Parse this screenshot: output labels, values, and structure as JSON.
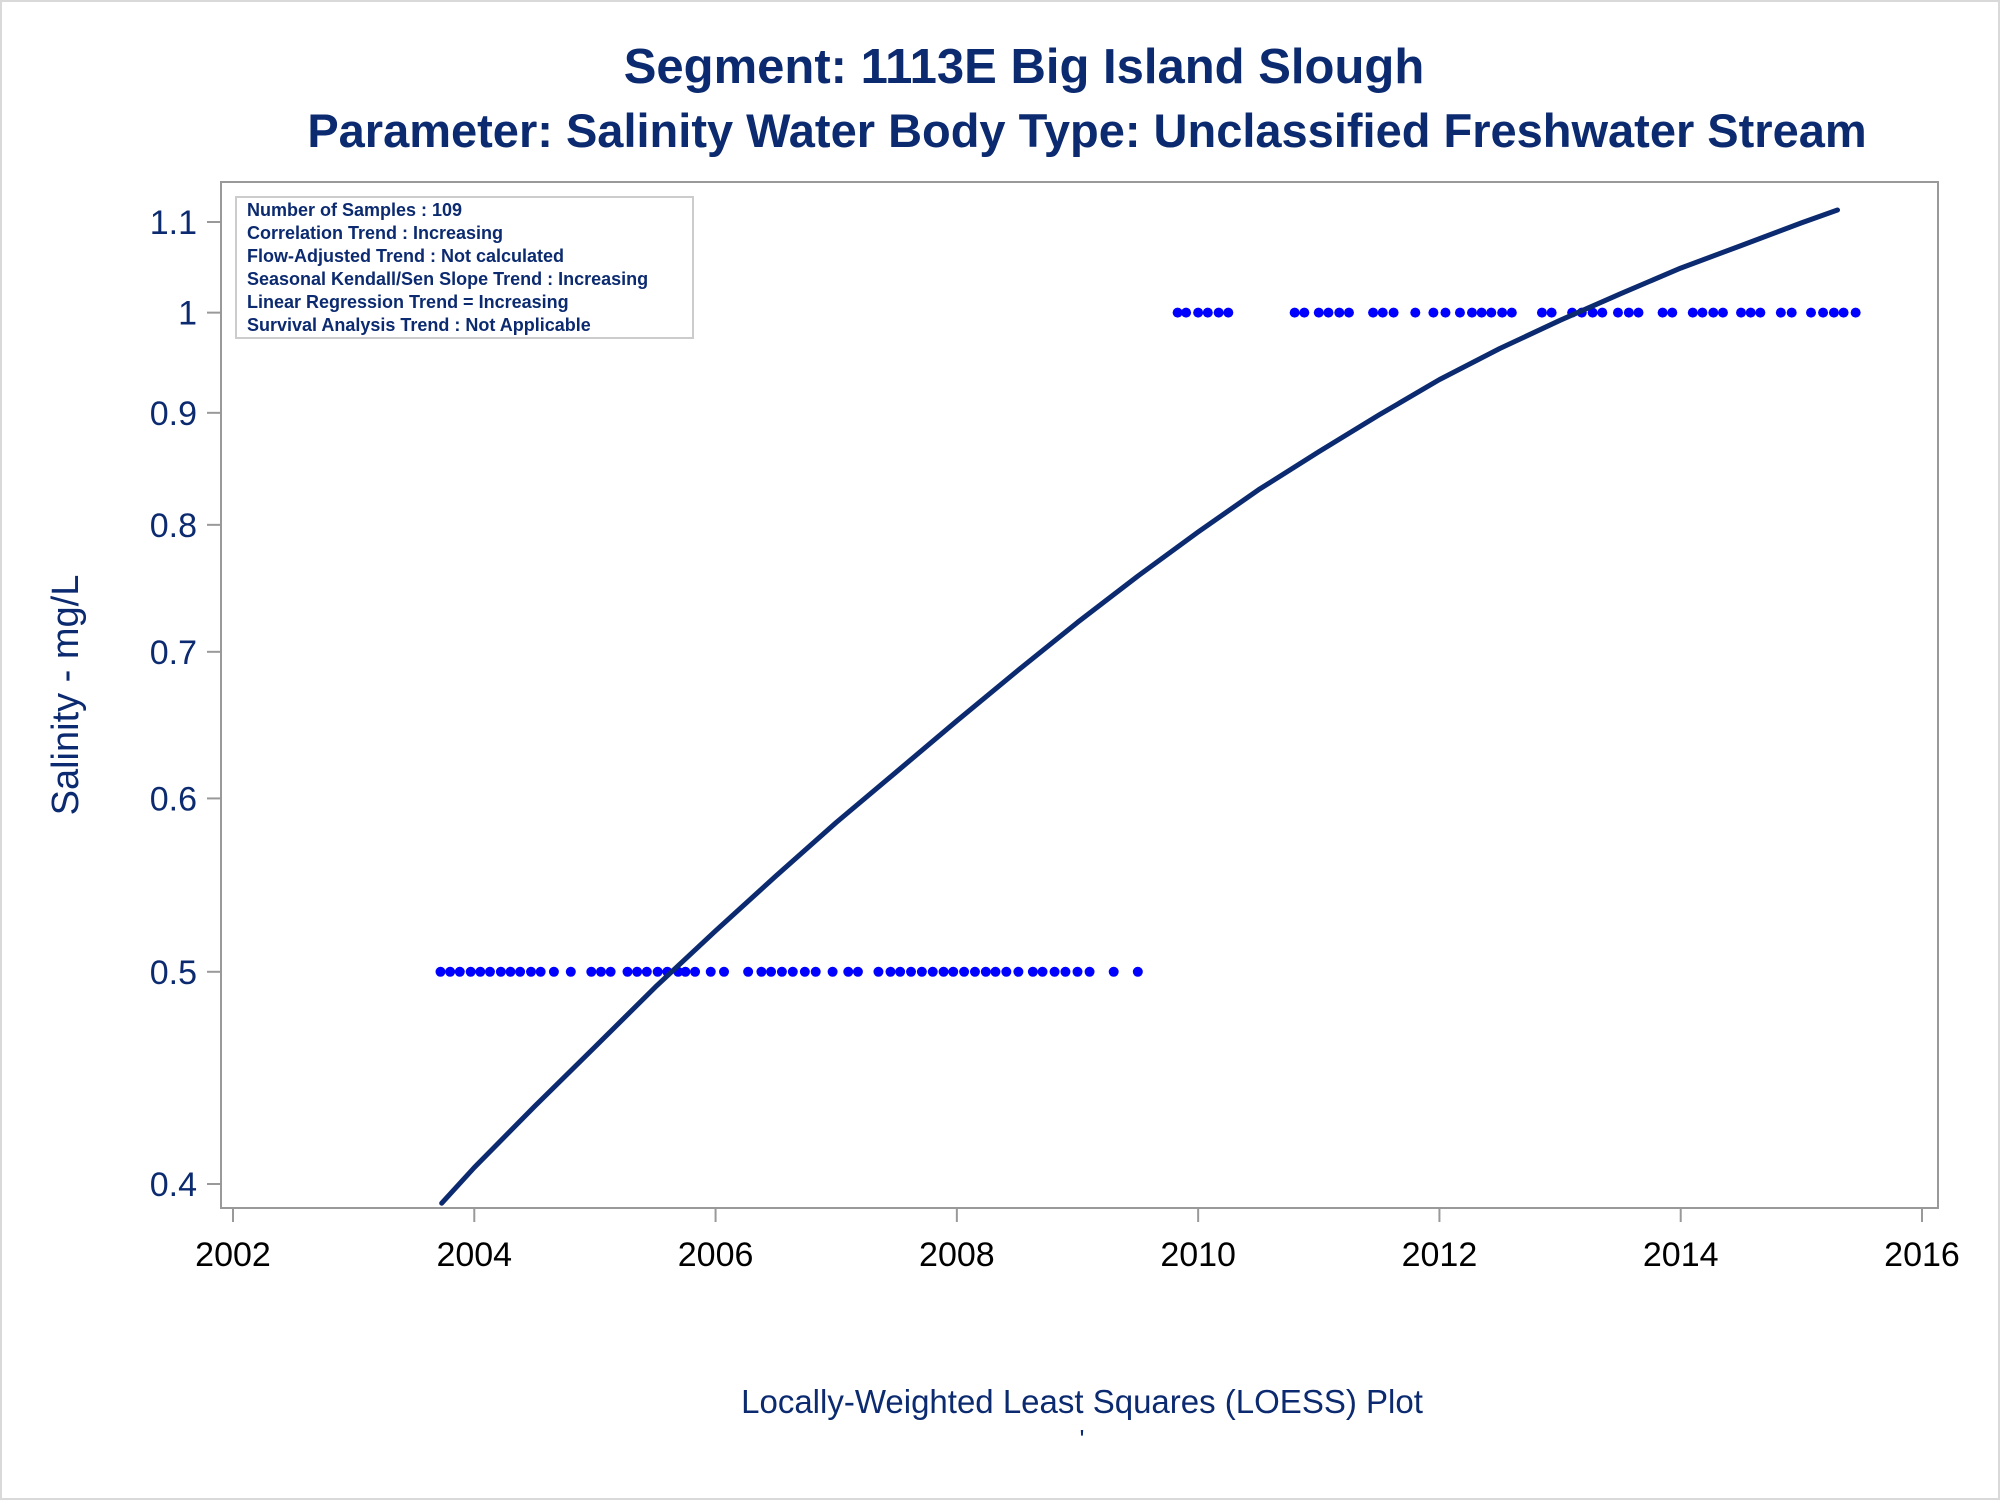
{
  "chart_data": {
    "type": "scatter",
    "title": "Segment: 1113E  Big Island Slough",
    "subtitle": "Parameter: Salinity   Water Body Type: Unclassified Freshwater Stream",
    "xlabel": "Locally-Weighted Least Squares (LOESS) Plot",
    "footnote": "'",
    "ylabel": "Salinity - mg/L",
    "y_scale": "log",
    "xlim": [
      2002,
      2016
    ],
    "ylim": [
      0.39,
      1.13
    ],
    "x_ticks": [
      "2002",
      "2004",
      "2006",
      "2008",
      "2010",
      "2012",
      "2014",
      "2016"
    ],
    "y_ticks": [
      {
        "value": 0.4,
        "label": "0.4"
      },
      {
        "value": 0.5,
        "label": "0.5"
      },
      {
        "value": 0.6,
        "label": "0.6"
      },
      {
        "value": 0.7,
        "label": "0.7"
      },
      {
        "value": 0.8,
        "label": "0.8"
      },
      {
        "value": 0.9,
        "label": "0.9"
      },
      {
        "value": 1.0,
        "label": "1"
      },
      {
        "value": 1.1,
        "label": "1.1"
      }
    ],
    "grid": false,
    "colors": {
      "points": "#0000ff",
      "line": "#0b2a6f",
      "text": "#0b2a6f",
      "frame": "#999999"
    },
    "stats_box": {
      "position": "top-left",
      "lines": [
        "Number of Samples : 109",
        "Correlation Trend : Increasing",
        "Flow-Adjusted Trend : Not calculated",
        "Seasonal Kendall/Sen Slope Trend : Increasing",
        "Linear Regression Trend = Increasing",
        "Survival Analysis Trend : Not Applicable"
      ]
    },
    "series": [
      {
        "type": "scatter",
        "values": [
          [
            2003.72,
            0.5
          ],
          [
            2003.8,
            0.5
          ],
          [
            2003.88,
            0.5
          ],
          [
            2003.97,
            0.5
          ],
          [
            2004.05,
            0.5
          ],
          [
            2004.13,
            0.5
          ],
          [
            2004.22,
            0.5
          ],
          [
            2004.3,
            0.5
          ],
          [
            2004.38,
            0.5
          ],
          [
            2004.47,
            0.5
          ],
          [
            2004.55,
            0.5
          ],
          [
            2004.66,
            0.5
          ],
          [
            2004.8,
            0.5
          ],
          [
            2004.97,
            0.5
          ],
          [
            2005.05,
            0.5
          ],
          [
            2005.13,
            0.5
          ],
          [
            2005.27,
            0.5
          ],
          [
            2005.35,
            0.5
          ],
          [
            2005.43,
            0.5
          ],
          [
            2005.52,
            0.5
          ],
          [
            2005.6,
            0.5
          ],
          [
            2005.69,
            0.5
          ],
          [
            2005.75,
            0.5
          ],
          [
            2005.83,
            0.5
          ],
          [
            2005.96,
            0.5
          ],
          [
            2006.07,
            0.5
          ],
          [
            2006.27,
            0.5
          ],
          [
            2006.38,
            0.5
          ],
          [
            2006.46,
            0.5
          ],
          [
            2006.55,
            0.5
          ],
          [
            2006.64,
            0.5
          ],
          [
            2006.74,
            0.5
          ],
          [
            2006.83,
            0.5
          ],
          [
            2006.97,
            0.5
          ],
          [
            2007.1,
            0.5
          ],
          [
            2007.18,
            0.5
          ],
          [
            2007.35,
            0.5
          ],
          [
            2007.45,
            0.5
          ],
          [
            2007.53,
            0.5
          ],
          [
            2007.62,
            0.5
          ],
          [
            2007.71,
            0.5
          ],
          [
            2007.8,
            0.5
          ],
          [
            2007.89,
            0.5
          ],
          [
            2007.97,
            0.5
          ],
          [
            2008.06,
            0.5
          ],
          [
            2008.15,
            0.5
          ],
          [
            2008.24,
            0.5
          ],
          [
            2008.32,
            0.5
          ],
          [
            2008.41,
            0.5
          ],
          [
            2008.51,
            0.5
          ],
          [
            2008.63,
            0.5
          ],
          [
            2008.71,
            0.5
          ],
          [
            2008.81,
            0.5
          ],
          [
            2008.9,
            0.5
          ],
          [
            2009.0,
            0.5
          ],
          [
            2009.1,
            0.5
          ],
          [
            2009.3,
            0.5
          ],
          [
            2009.5,
            0.5
          ],
          [
            2009.83,
            1.0
          ],
          [
            2009.9,
            1.0
          ],
          [
            2010.0,
            1.0
          ],
          [
            2010.08,
            1.0
          ],
          [
            2010.17,
            1.0
          ],
          [
            2010.25,
            1.0
          ],
          [
            2010.8,
            1.0
          ],
          [
            2010.88,
            1.0
          ],
          [
            2011.0,
            1.0
          ],
          [
            2011.08,
            1.0
          ],
          [
            2011.17,
            1.0
          ],
          [
            2011.25,
            1.0
          ],
          [
            2011.45,
            1.0
          ],
          [
            2011.53,
            1.0
          ],
          [
            2011.62,
            1.0
          ],
          [
            2011.8,
            1.0
          ],
          [
            2011.95,
            1.0
          ],
          [
            2012.05,
            1.0
          ],
          [
            2012.17,
            1.0
          ],
          [
            2012.27,
            1.0
          ],
          [
            2012.35,
            1.0
          ],
          [
            2012.43,
            1.0
          ],
          [
            2012.52,
            1.0
          ],
          [
            2012.6,
            1.0
          ],
          [
            2012.85,
            1.0
          ],
          [
            2012.93,
            1.0
          ],
          [
            2013.1,
            1.0
          ],
          [
            2013.18,
            1.0
          ],
          [
            2013.27,
            1.0
          ],
          [
            2013.35,
            1.0
          ],
          [
            2013.48,
            1.0
          ],
          [
            2013.57,
            1.0
          ],
          [
            2013.65,
            1.0
          ],
          [
            2013.85,
            1.0
          ],
          [
            2013.93,
            1.0
          ],
          [
            2014.1,
            1.0
          ],
          [
            2014.18,
            1.0
          ],
          [
            2014.27,
            1.0
          ],
          [
            2014.35,
            1.0
          ],
          [
            2014.5,
            1.0
          ],
          [
            2014.58,
            1.0
          ],
          [
            2014.66,
            1.0
          ],
          [
            2014.83,
            1.0
          ],
          [
            2014.92,
            1.0
          ],
          [
            2015.08,
            1.0
          ],
          [
            2015.18,
            1.0
          ],
          [
            2015.27,
            1.0
          ],
          [
            2015.35,
            1.0
          ],
          [
            2015.45,
            1.0
          ]
        ]
      },
      {
        "type": "line",
        "values": [
          [
            2003.73,
            0.392
          ],
          [
            2004.0,
            0.407
          ],
          [
            2004.5,
            0.434
          ],
          [
            2005.0,
            0.462
          ],
          [
            2005.5,
            0.492
          ],
          [
            2006.0,
            0.522
          ],
          [
            2006.5,
            0.553
          ],
          [
            2007.0,
            0.585
          ],
          [
            2007.5,
            0.617
          ],
          [
            2008.0,
            0.651
          ],
          [
            2008.5,
            0.686
          ],
          [
            2009.0,
            0.722
          ],
          [
            2009.5,
            0.758
          ],
          [
            2010.0,
            0.794
          ],
          [
            2010.5,
            0.83
          ],
          [
            2011.0,
            0.864
          ],
          [
            2011.5,
            0.898
          ],
          [
            2012.0,
            0.932
          ],
          [
            2012.5,
            0.963
          ],
          [
            2013.0,
            0.992
          ],
          [
            2013.5,
            1.02
          ],
          [
            2014.0,
            1.048
          ],
          [
            2014.5,
            1.073
          ],
          [
            2015.0,
            1.099
          ],
          [
            2015.3,
            1.114
          ]
        ]
      }
    ]
  }
}
